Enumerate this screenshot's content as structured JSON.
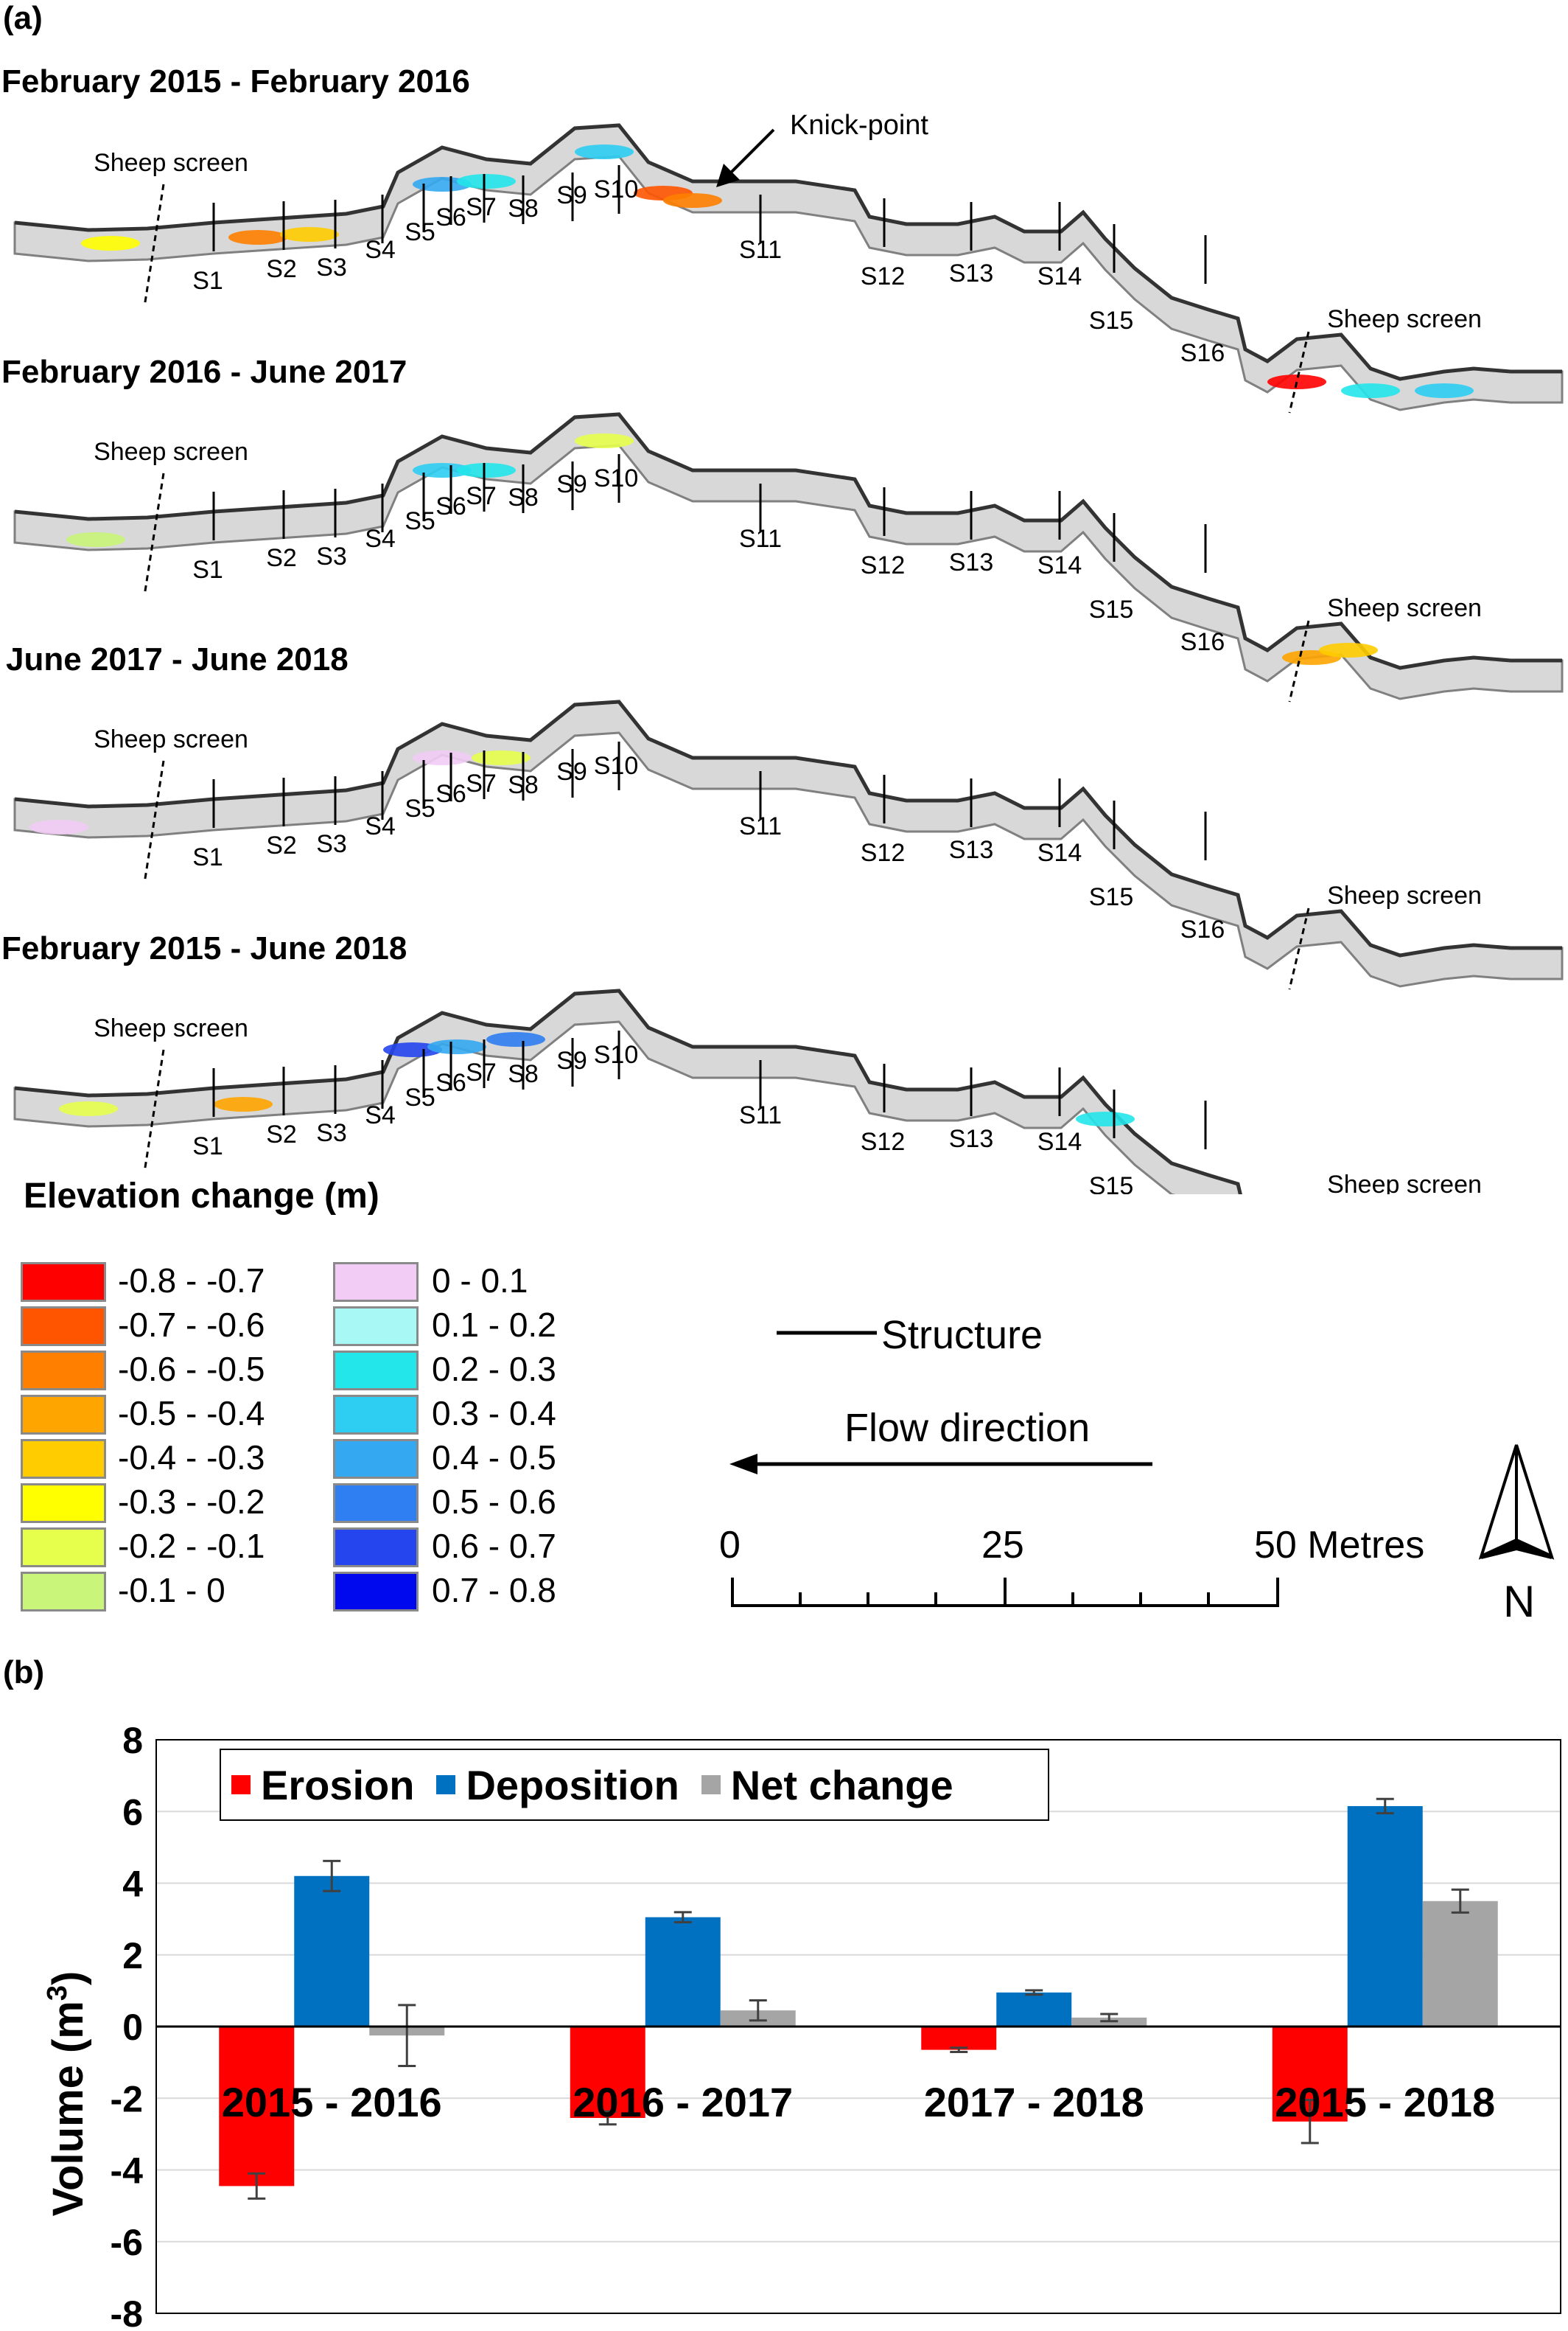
{
  "panel_a": {
    "label": "(a)",
    "maps": [
      {
        "title": "February 2015 - February 2016",
        "sheep_left": "Sheep screen",
        "sheep_right": "Sheep screen",
        "knick": "Knick-point"
      },
      {
        "title": "February 2016 - June 2017",
        "sheep_left": "Sheep screen",
        "sheep_right": "Sheep screen"
      },
      {
        "title": "June 2017 - June 2018",
        "sheep_left": "Sheep screen",
        "sheep_right": "Sheep screen"
      },
      {
        "title": "February 2015 - June 2018",
        "sheep_left": "Sheep screen",
        "sheep_right": "Sheep screen"
      }
    ],
    "structures": [
      "S1",
      "S2",
      "S3",
      "S4",
      "S5",
      "S6",
      "S7",
      "S8",
      "S9",
      "S10",
      "S11",
      "S12",
      "S13",
      "S14",
      "S15",
      "S16"
    ],
    "legend": {
      "title": "Elevation change (m)",
      "negative": [
        {
          "label": "-0.8 - -0.7",
          "color": "#ff0000"
        },
        {
          "label": "-0.7 - -0.6",
          "color": "#ff5500"
        },
        {
          "label": "-0.6 - -0.5",
          "color": "#ff7f00"
        },
        {
          "label": "-0.5 - -0.4",
          "color": "#ffa500"
        },
        {
          "label": "-0.4 - -0.3",
          "color": "#ffcc00"
        },
        {
          "label": "-0.3 - -0.2",
          "color": "#ffff00"
        },
        {
          "label": "-0.2 - -0.1",
          "color": "#e6ff4d"
        },
        {
          "label": "-0.1 - 0",
          "color": "#c8f57a"
        }
      ],
      "positive": [
        {
          "label": "0 - 0.1",
          "color": "#f2ccf5"
        },
        {
          "label": "0.1 - 0.2",
          "color": "#a8f8f5"
        },
        {
          "label": "0.2 - 0.3",
          "color": "#22e6ea"
        },
        {
          "label": "0.3 - 0.4",
          "color": "#2ecdf2"
        },
        {
          "label": "0.4 - 0.5",
          "color": "#34a8f0"
        },
        {
          "label": "0.5 - 0.6",
          "color": "#2f7ef2"
        },
        {
          "label": "0.6 - 0.7",
          "color": "#2546ee"
        },
        {
          "label": "0.7 - 0.8",
          "color": "#0008ee"
        }
      ]
    },
    "structure_key": "Structure",
    "flow_label": "Flow direction",
    "scale": {
      "ticks": [
        "0",
        "25",
        "50 Metres"
      ]
    },
    "north": "N"
  },
  "chart_data": {
    "panel_label": "(b)",
    "type": "bar",
    "categories": [
      "2015 - 2016",
      "2016 - 2017",
      "2017 - 2018",
      "2015 - 2018"
    ],
    "series": [
      {
        "name": "Erosion",
        "color": "#ff0000",
        "values": [
          -4.45,
          -2.55,
          -0.65,
          -2.65
        ],
        "errors": [
          0.35,
          0.18,
          0.06,
          0.6
        ]
      },
      {
        "name": "Deposition",
        "color": "#0070c0",
        "values": [
          4.2,
          3.05,
          0.95,
          6.15
        ],
        "errors": [
          0.42,
          0.14,
          0.06,
          0.2
        ]
      },
      {
        "name": "Net change",
        "color": "#a5a5a5",
        "values": [
          -0.25,
          0.45,
          0.25,
          3.5
        ],
        "errors": [
          0.85,
          0.28,
          0.1,
          0.32
        ]
      }
    ],
    "ylabel": "Volume (m",
    "ylabel_sup": "3",
    "ylabel_end": ")",
    "ylim": [
      -8,
      8
    ],
    "yticks": [
      "8",
      "6",
      "4",
      "2",
      "0",
      "-2",
      "-4",
      "-6",
      "-8"
    ],
    "grid": true,
    "legend_position": "top-left"
  }
}
